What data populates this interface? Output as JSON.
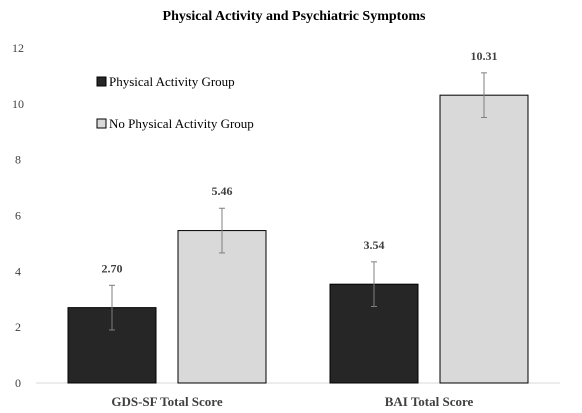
{
  "chart_data": {
    "type": "bar",
    "title": "Physical Activity and Psychiatric Symptoms",
    "xlabel": "",
    "ylabel": "",
    "categories": [
      "GDS-SF Total Score",
      "BAI Total Score"
    ],
    "series": [
      {
        "name": "Physical Activity Group",
        "color": "#262626",
        "values": [
          2.7,
          3.54
        ],
        "error": [
          0.8,
          0.8
        ],
        "labels": [
          "2.70",
          "3.54"
        ]
      },
      {
        "name": "No Physical Activity Group",
        "color": "#d9d9d9",
        "values": [
          5.46,
          10.31
        ],
        "error": [
          0.8,
          0.8
        ],
        "labels": [
          "5.46",
          "10.31"
        ]
      }
    ],
    "ylim": [
      0,
      12
    ],
    "yticks": [
      0,
      2,
      4,
      6,
      8,
      10,
      12
    ],
    "ytick_labels": [
      "0",
      "2",
      "4",
      "6",
      "8",
      "10",
      "12"
    ],
    "grid": false,
    "legend_position": "top-left-inside",
    "axis_color": "#d9d9d9",
    "bar_edge_color": "#000000",
    "error_bar_color": "#7f7f7f"
  }
}
